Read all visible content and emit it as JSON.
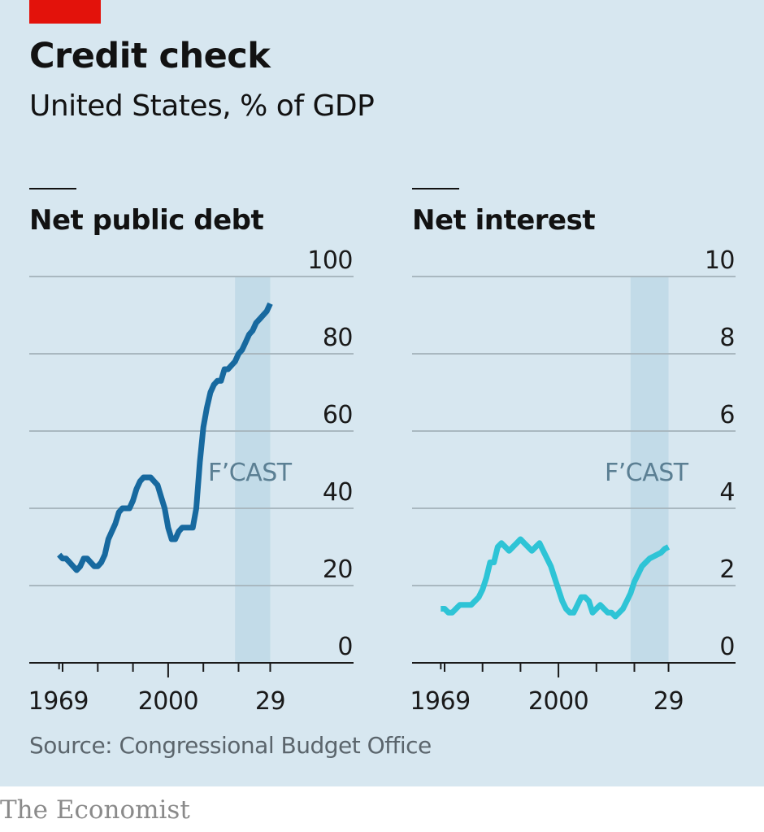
{
  "header": {
    "title": "Credit check",
    "subtitle": "United States, % of GDP"
  },
  "footer": {
    "source": "Source: Congressional Budget Office",
    "brand": "The Economist"
  },
  "colors": {
    "background": "#d7e7f0",
    "accent_red": "#e3120b",
    "forecast_band": "#c2dbe8",
    "debt_line": "#17699f",
    "interest_line": "#2ec4d6",
    "gridline": "#a9b8c0",
    "axis": "#1a1a1a"
  },
  "chart_data": [
    {
      "type": "line",
      "title": "Net public debt",
      "xlabel": "",
      "ylabel": "% of GDP",
      "xlim": [
        1969,
        2029
      ],
      "ylim": [
        0,
        100
      ],
      "yticks": [
        0,
        20,
        40,
        60,
        80,
        100
      ],
      "xtick_years": [
        1970,
        1980,
        1990,
        2000,
        2010,
        2020,
        2029
      ],
      "xtick_labels": [
        {
          "year": 1969,
          "label": "1969"
        },
        {
          "year": 2000,
          "label": "2000"
        },
        {
          "year": 2029,
          "label": "29"
        }
      ],
      "grid": true,
      "forecast": {
        "label": "F’CAST",
        "from": 2019,
        "to": 2029
      },
      "series": [
        {
          "name": "Net public debt",
          "x": [
            1969,
            1970,
            1971,
            1972,
            1973,
            1974,
            1975,
            1976,
            1977,
            1978,
            1979,
            1980,
            1981,
            1982,
            1983,
            1984,
            1985,
            1986,
            1987,
            1988,
            1989,
            1990,
            1991,
            1992,
            1993,
            1994,
            1995,
            1996,
            1997,
            1998,
            1999,
            2000,
            2001,
            2002,
            2003,
            2004,
            2005,
            2006,
            2007,
            2008,
            2009,
            2010,
            2011,
            2012,
            2013,
            2014,
            2015,
            2016,
            2017,
            2018,
            2019,
            2020,
            2021,
            2022,
            2023,
            2024,
            2025,
            2026,
            2027,
            2028,
            2029
          ],
          "values": [
            28,
            27,
            27,
            26,
            25,
            24,
            25,
            27,
            27,
            26,
            25,
            25,
            26,
            28,
            32,
            34,
            36,
            39,
            40,
            40,
            40,
            42,
            45,
            47,
            48,
            48,
            48,
            47,
            46,
            43,
            40,
            35,
            32,
            32,
            34,
            35,
            35,
            35,
            35,
            40,
            52,
            61,
            66,
            70,
            72,
            73,
            73,
            76,
            76,
            77,
            78,
            80,
            81,
            83,
            85,
            86,
            88,
            89,
            90,
            91,
            93
          ]
        }
      ]
    },
    {
      "type": "line",
      "title": "Net interest",
      "xlabel": "",
      "ylabel": "% of GDP",
      "xlim": [
        1969,
        2029
      ],
      "ylim": [
        0,
        10
      ],
      "yticks": [
        0,
        2,
        4,
        6,
        8,
        10
      ],
      "xtick_years": [
        1970,
        1980,
        1990,
        2000,
        2010,
        2020,
        2029
      ],
      "xtick_labels": [
        {
          "year": 1969,
          "label": "1969"
        },
        {
          "year": 2000,
          "label": "2000"
        },
        {
          "year": 2029,
          "label": "29"
        }
      ],
      "grid": true,
      "forecast": {
        "label": "F’CAST",
        "from": 2019,
        "to": 2029
      },
      "series": [
        {
          "name": "Net interest",
          "x": [
            1969,
            1970,
            1971,
            1972,
            1973,
            1974,
            1975,
            1976,
            1977,
            1978,
            1979,
            1980,
            1981,
            1982,
            1983,
            1984,
            1985,
            1986,
            1987,
            1988,
            1989,
            1990,
            1991,
            1992,
            1993,
            1994,
            1995,
            1996,
            1997,
            1998,
            1999,
            2000,
            2001,
            2002,
            2003,
            2004,
            2005,
            2006,
            2007,
            2008,
            2009,
            2010,
            2011,
            2012,
            2013,
            2014,
            2015,
            2016,
            2017,
            2018,
            2019,
            2020,
            2021,
            2022,
            2023,
            2024,
            2025,
            2026,
            2027,
            2028,
            2029
          ],
          "values": [
            1.4,
            1.4,
            1.3,
            1.3,
            1.4,
            1.5,
            1.5,
            1.5,
            1.5,
            1.6,
            1.7,
            1.9,
            2.2,
            2.6,
            2.6,
            3.0,
            3.1,
            3.0,
            2.9,
            3.0,
            3.1,
            3.2,
            3.1,
            3.0,
            2.9,
            3.0,
            3.1,
            2.9,
            2.7,
            2.5,
            2.2,
            1.9,
            1.6,
            1.4,
            1.3,
            1.3,
            1.5,
            1.7,
            1.7,
            1.6,
            1.3,
            1.4,
            1.5,
            1.4,
            1.3,
            1.3,
            1.2,
            1.3,
            1.4,
            1.6,
            1.8,
            2.1,
            2.3,
            2.5,
            2.6,
            2.7,
            2.75,
            2.8,
            2.85,
            2.95,
            3.0
          ]
        }
      ]
    }
  ]
}
